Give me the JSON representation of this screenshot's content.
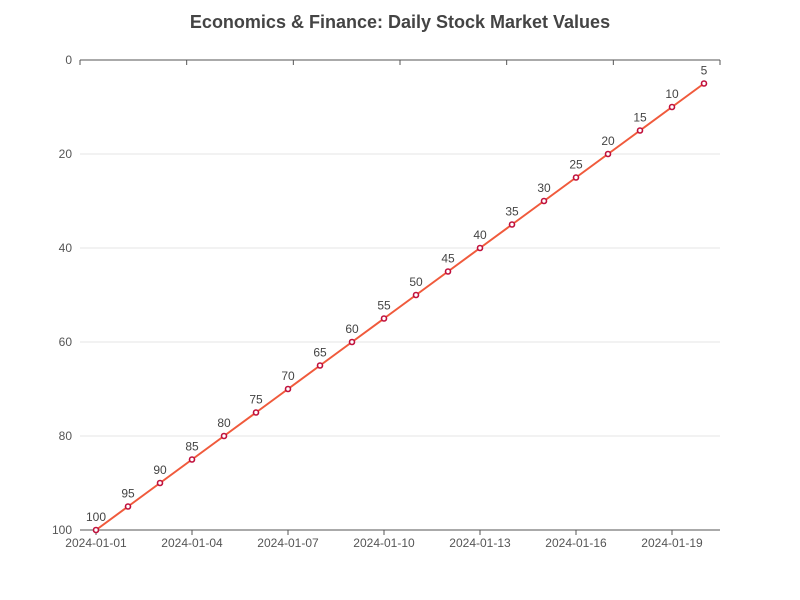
{
  "chart_data": {
    "type": "line",
    "title": "Economics & Finance: Daily Stock Market Values",
    "x": [
      "2024-01-01",
      "2024-01-02",
      "2024-01-03",
      "2024-01-04",
      "2024-01-05",
      "2024-01-06",
      "2024-01-07",
      "2024-01-08",
      "2024-01-09",
      "2024-01-10",
      "2024-01-11",
      "2024-01-12",
      "2024-01-13",
      "2024-01-14",
      "2024-01-15",
      "2024-01-16",
      "2024-01-17",
      "2024-01-18",
      "2024-01-19",
      "2024-01-20"
    ],
    "x_tick_labels": [
      "2024-01-01",
      "2024-01-04",
      "2024-01-07",
      "2024-01-10",
      "2024-01-13",
      "2024-01-16",
      "2024-01-19"
    ],
    "series": [
      {
        "values": [
          100,
          95,
          90,
          85,
          80,
          75,
          70,
          65,
          60,
          55,
          50,
          45,
          40,
          35,
          30,
          25,
          20,
          15,
          10,
          5
        ]
      }
    ],
    "y_tick_labels": [
      "0",
      "20",
      "40",
      "60",
      "80",
      "100"
    ],
    "ylim": [
      0,
      100
    ],
    "y_inverted": true,
    "grid": "horizontal",
    "colors": {
      "line": "#f05a3c",
      "marker": "#c0103c",
      "axis": "#555555",
      "grid": "#e6e6e6"
    }
  }
}
